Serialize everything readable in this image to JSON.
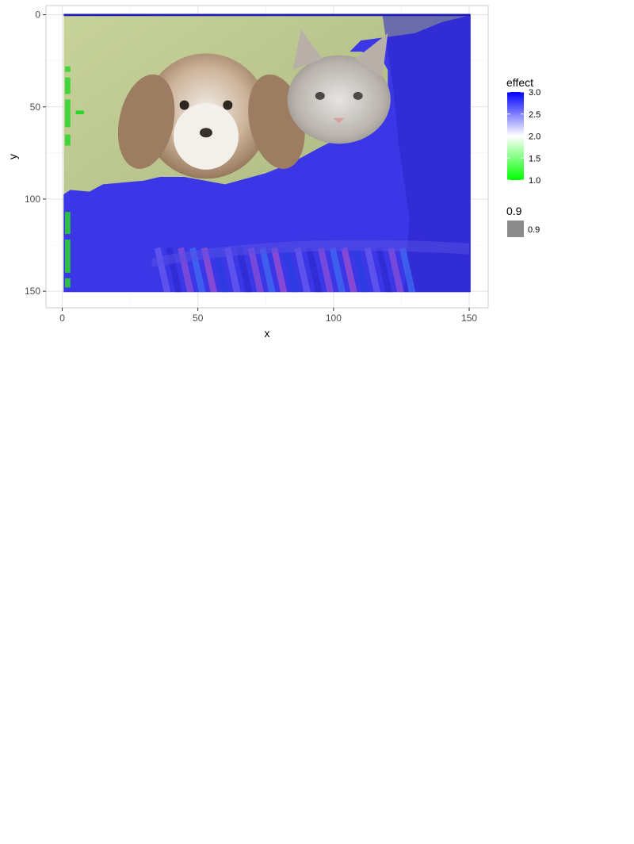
{
  "chart_data": {
    "type": "heatmap",
    "title": "",
    "xlabel": "x",
    "ylabel": "y",
    "xlim": [
      -6,
      157
    ],
    "ylim": [
      -5,
      159
    ],
    "y_reversed": true,
    "x_ticks": [
      0,
      50,
      100,
      150
    ],
    "y_ticks": [
      0,
      50,
      100,
      150
    ],
    "x_tick_labels": [
      "0",
      "50",
      "100",
      "150"
    ],
    "y_tick_labels": [
      "0",
      "50",
      "100",
      "150"
    ],
    "grid": true,
    "background_image": "photo of a beagle puppy and a grey tabby kitten sitting in a basket on a striped blanket",
    "fill_scale": {
      "name": "effect",
      "range": [
        1.0,
        3.0
      ],
      "breaks": [
        1.0,
        1.5,
        2.0,
        2.5,
        3.0
      ],
      "break_labels": [
        "1.0",
        "1.5",
        "2.0",
        "2.5",
        "3.0"
      ],
      "low_color": "#00ff00",
      "mid_color": "#ffffff",
      "high_color": "#0000ff",
      "midpoint": 2.0
    },
    "alpha_legend": {
      "title": "0.9",
      "label": "0.9",
      "color": "#8c8c8c"
    },
    "regions": [
      {
        "name": "puppy-and-kitten-heads",
        "effect": 2.0,
        "description": "near-neutral region over the animals' heads"
      },
      {
        "name": "bodies-and-blanket",
        "effect": 3.0,
        "description": "high effect over the bodies, basket and blanket"
      },
      {
        "name": "left-edge-strip",
        "effect": 1.0,
        "description": "low effect along the left border"
      }
    ]
  },
  "colors": {
    "panel_border": "#cccccc",
    "grid_major": "#e3e3e3",
    "grid_minor": "#f2f2f2",
    "tick_text": "#4d4d4d"
  }
}
